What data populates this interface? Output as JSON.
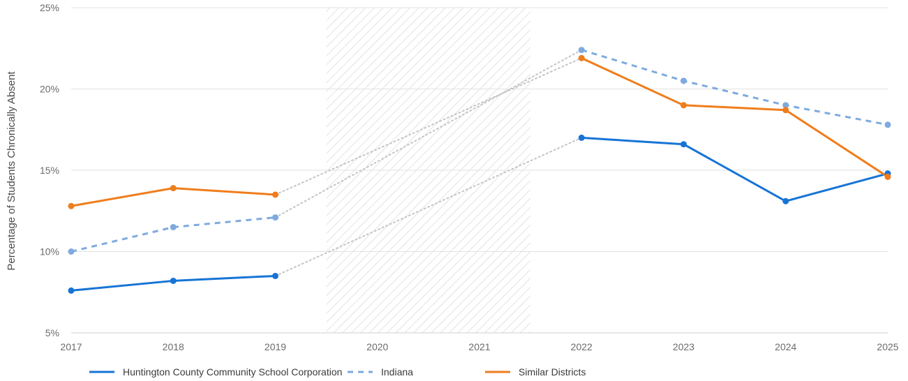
{
  "chart_data": {
    "type": "line",
    "ylabel": "Percentage of Students Chronically Absent",
    "xlabel": "",
    "categories": [
      "2017",
      "2018",
      "2019",
      "2020",
      "2021",
      "2022",
      "2023",
      "2024",
      "2025"
    ],
    "ylim": [
      5,
      25
    ],
    "yticks": [
      5,
      10,
      15,
      20,
      25
    ],
    "ytick_labels": [
      "5%",
      "10%",
      "15%",
      "20%",
      "25%"
    ],
    "grid": true,
    "legend_position": "bottom-left",
    "shaded_gap": {
      "from": "2020",
      "to": "2021",
      "pattern": "hatched"
    },
    "series": [
      {
        "name": "Huntington County Community School Corporation",
        "key": "huntington",
        "color": "#1774d6",
        "style": "solid",
        "values": [
          7.6,
          8.2,
          8.5,
          null,
          null,
          17.0,
          16.6,
          13.1,
          14.8
        ]
      },
      {
        "name": "Indiana",
        "key": "indiana",
        "color": "#7eaadf",
        "style": "dashed",
        "values": [
          10.0,
          11.5,
          12.1,
          null,
          null,
          22.4,
          20.5,
          19.0,
          17.8
        ]
      },
      {
        "name": "Similar Districts",
        "key": "similar",
        "color": "#f07d1c",
        "style": "solid",
        "values": [
          12.8,
          13.9,
          13.5,
          null,
          null,
          21.9,
          19.0,
          18.7,
          14.6
        ]
      }
    ],
    "gap_connector_color": "#c4c4c4"
  }
}
